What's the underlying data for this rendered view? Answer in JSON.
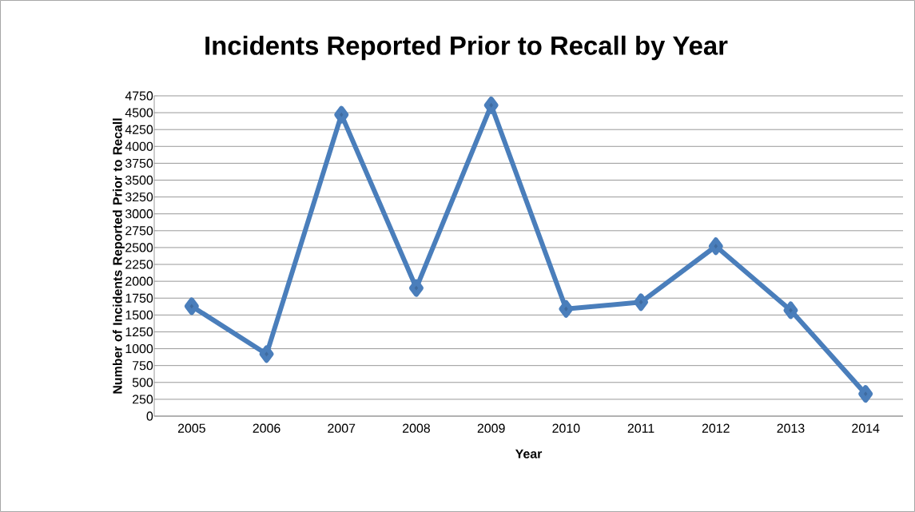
{
  "chart_data": {
    "type": "line",
    "title": "Incidents Reported Prior to Recall by Year",
    "xlabel": "Year",
    "ylabel": "Number of Incidents Reported Prior to Recall",
    "categories": [
      "2005",
      "2006",
      "2007",
      "2008",
      "2009",
      "2010",
      "2011",
      "2012",
      "2013",
      "2014"
    ],
    "values": [
      1630,
      920,
      4470,
      1900,
      4610,
      1590,
      1690,
      2520,
      1570,
      330
    ],
    "color": "#4a7ebb",
    "marker": "diamond",
    "line_style": "solid",
    "grid": "y",
    "ylim": [
      0,
      4750
    ],
    "yticks": [
      0,
      250,
      500,
      750,
      1000,
      1250,
      1500,
      1750,
      2000,
      2250,
      2500,
      2750,
      3000,
      3250,
      3500,
      3750,
      4000,
      4250,
      4500,
      4750
    ]
  }
}
